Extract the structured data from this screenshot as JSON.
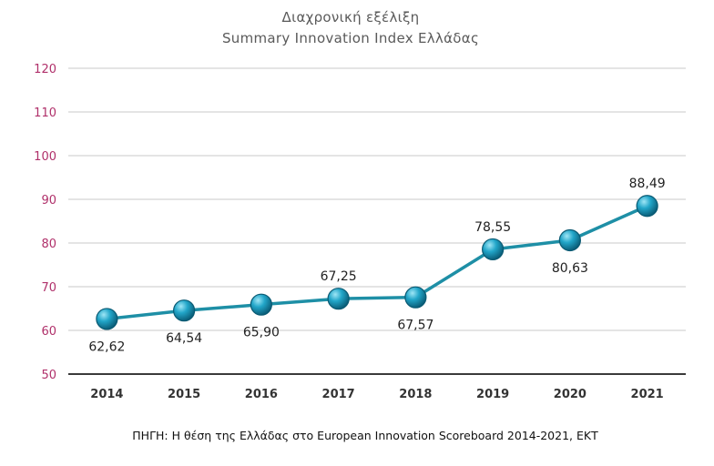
{
  "chart_data": {
    "type": "line",
    "title": "Διαχρονική εξέλιξη",
    "subtitle": "Summary Innovation Index Ελλάδας",
    "categories": [
      "2014",
      "2015",
      "2016",
      "2017",
      "2018",
      "2019",
      "2020",
      "2021"
    ],
    "values": [
      62.62,
      64.54,
      65.9,
      67.25,
      67.57,
      78.55,
      80.63,
      88.49
    ],
    "data_labels": [
      "62,62",
      "64,54",
      "65,90",
      "67,25",
      "67,57",
      "78,55",
      "80,63",
      "88,49"
    ],
    "label_positions": [
      "below",
      "below",
      "below",
      "above",
      "below",
      "above",
      "below",
      "above"
    ],
    "ylim": [
      50,
      120
    ],
    "yticks": [
      50,
      60,
      70,
      80,
      90,
      100,
      110,
      120
    ],
    "ytick_labels": [
      "50",
      "60",
      "70",
      "80",
      "90",
      "100",
      "110",
      "120"
    ],
    "grid": true,
    "legend": "none",
    "colors": {
      "line": "#1e8fa6",
      "marker": "#1f9cc0",
      "ytick": "#b0306a"
    },
    "source": "ΠΗΓΗ: Η θέση της Ελλάδας στο European Innovation Scoreboard 2014-2021, ΕΚΤ"
  }
}
